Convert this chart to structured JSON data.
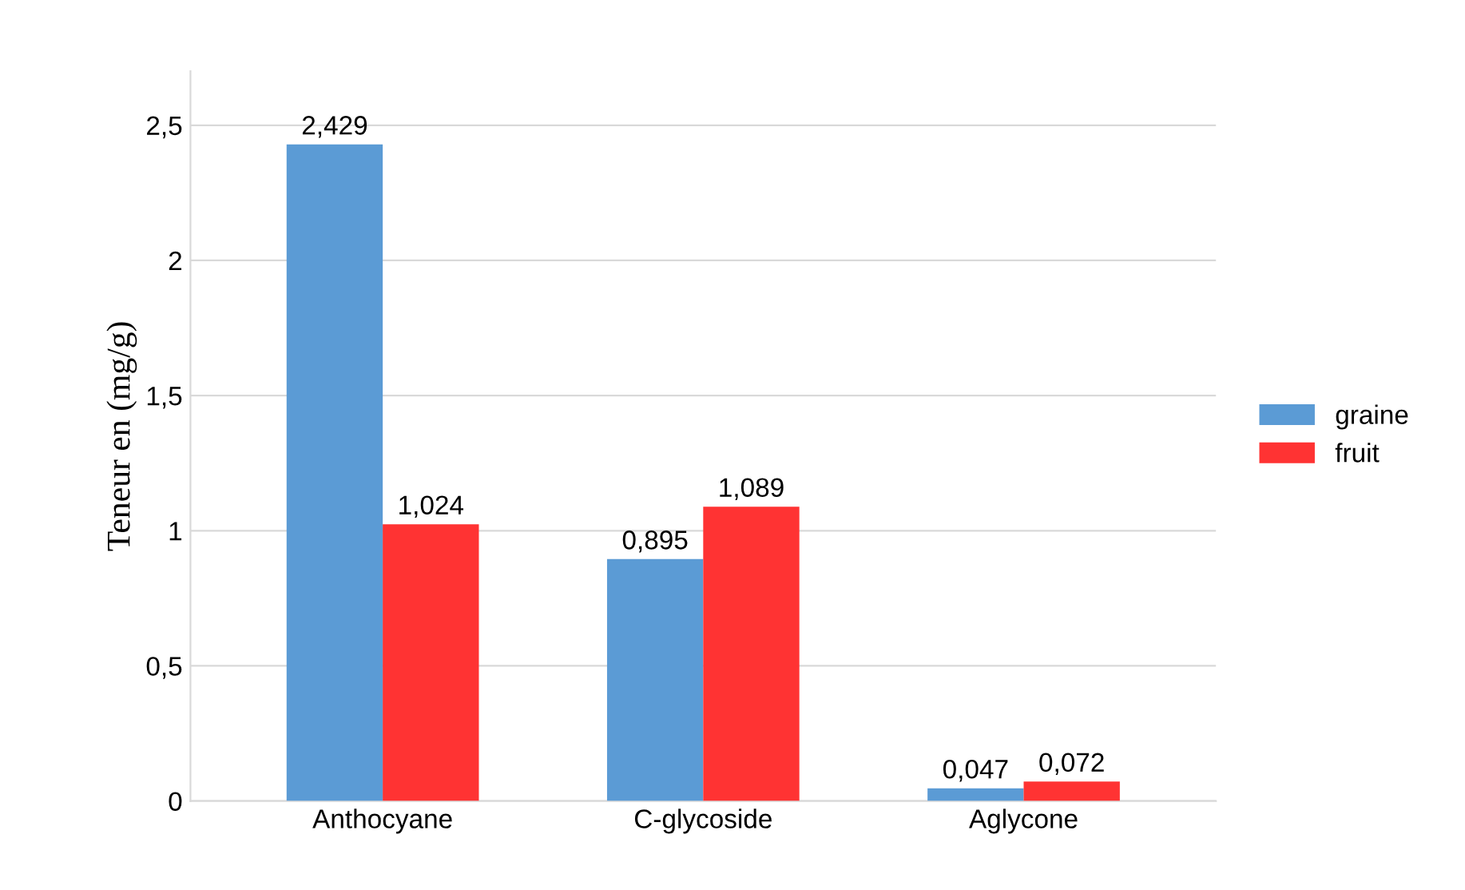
{
  "chart_data": {
    "type": "bar",
    "ylabel": "Teneur en (mg/g)",
    "categories": [
      "Anthocyane",
      "C-glycoside",
      "Aglycone"
    ],
    "series": [
      {
        "name": "graine",
        "color": "#5b9bd5",
        "values": [
          2.429,
          0.895,
          0.047
        ],
        "value_labels": [
          "2,429",
          "0,895",
          "0,047"
        ]
      },
      {
        "name": "fruit",
        "color": "#ff3333",
        "values": [
          1.024,
          1.089,
          0.072
        ],
        "value_labels": [
          "1,024",
          "1,089",
          "0,072"
        ]
      }
    ],
    "ylim": [
      0,
      2.7
    ],
    "yticks": [
      0,
      {
        "value": 0.5,
        "label": "0,5"
      },
      1,
      {
        "value": 1.5,
        "label": "1,5"
      },
      2,
      {
        "value": 2.5,
        "label": "2,5"
      }
    ],
    "grid": "y",
    "legend": "right"
  }
}
